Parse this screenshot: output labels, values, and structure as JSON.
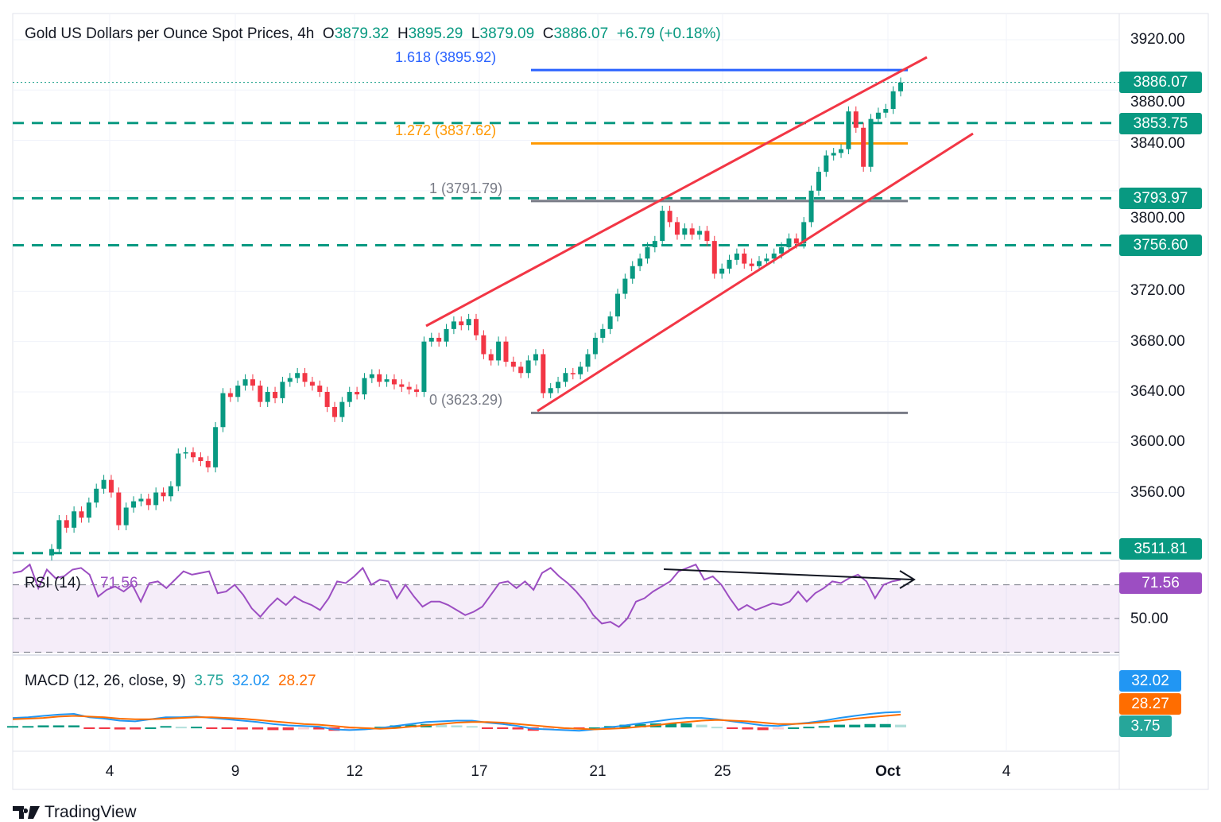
{
  "header": {
    "title": "Gold US Dollars per Ounce Spot Prices, 4h",
    "o_label": "O",
    "o": "3879.32",
    "h_label": "H",
    "h": "3895.29",
    "l_label": "L",
    "l": "3879.09",
    "c_label": "C",
    "c": "3886.07",
    "change": "+6.79 (+0.18%)"
  },
  "fib": [
    {
      "label": "1.618 (3895.92)",
      "price": 3895.92,
      "color": "#2962ff"
    },
    {
      "label": "1.272 (3837.62)",
      "price": 3837.62,
      "color": "#ff9800"
    },
    {
      "label": "1 (3791.79)",
      "price": 3791.79,
      "color": "#787b86"
    },
    {
      "label": "0 (3623.29)",
      "price": 3623.29,
      "color": "#787b86"
    }
  ],
  "levels": [
    {
      "label": "3853.75",
      "price": 3853.75
    },
    {
      "label": "3793.97",
      "price": 3793.97
    },
    {
      "label": "3756.60",
      "price": 3756.6
    },
    {
      "label": "3511.81",
      "price": 3511.81
    }
  ],
  "last_price": {
    "label": "3886.07",
    "price": 3886.07
  },
  "rsi": {
    "title": "RSI (14)",
    "value": "71.56",
    "level_label": "50.00",
    "color": "#9c4ec2"
  },
  "macd": {
    "title": "MACD (12, 26, close, 9)",
    "hist": "3.75",
    "macd": "32.02",
    "signal": "28.27",
    "hist_color": "#26a69a",
    "macd_color": "#2196f3",
    "signal_color": "#ff6d00"
  },
  "brand": "TradingView",
  "chart_data": {
    "type": "candlestick",
    "title": "Gold US Dollars per Ounce Spot Prices, 4h",
    "y_ticks": [
      "3920.00",
      "3880.00",
      "3840.00",
      "3800.00",
      "3720.00",
      "3680.00",
      "3640.00",
      "3600.00",
      "3560.00"
    ],
    "x_ticks": [
      "4",
      "9",
      "12",
      "17",
      "21",
      "25",
      "Oct",
      "4"
    ],
    "ylim": [
      3500,
      3930
    ],
    "closes": [
      3515,
      3538,
      3532,
      3545,
      3540,
      3552,
      3563,
      3570,
      3560,
      3534,
      3548,
      3553,
      3555,
      3550,
      3560,
      3557,
      3565,
      3591,
      3592,
      3588,
      3585,
      3580,
      3612,
      3639,
      3636,
      3645,
      3650,
      3645,
      3632,
      3640,
      3635,
      3648,
      3651,
      3655,
      3648,
      3645,
      3640,
      3628,
      3620,
      3632,
      3640,
      3638,
      3651,
      3654,
      3648,
      3650,
      3646,
      3644,
      3642,
      3640,
      3680,
      3683,
      3680,
      3690,
      3696,
      3693,
      3698,
      3685,
      3670,
      3665,
      3680,
      3664,
      3660,
      3655,
      3665,
      3670,
      3639,
      3643,
      3648,
      3655,
      3654,
      3660,
      3670,
      3683,
      3690,
      3700,
      3718,
      3730,
      3740,
      3746,
      3755,
      3760,
      3784,
      3775,
      3765,
      3770,
      3765,
      3768,
      3760,
      3734,
      3738,
      3745,
      3750,
      3742,
      3740,
      3744,
      3746,
      3750,
      3755,
      3762,
      3758,
      3775,
      3800,
      3815,
      3828,
      3830,
      3833,
      3863,
      3850,
      3819,
      3857,
      3862,
      3865,
      3879,
      3886
    ],
    "rsi_values": [
      77,
      78,
      82,
      68,
      79,
      74,
      75,
      79,
      80,
      76,
      63,
      67,
      69,
      66,
      70,
      60,
      71,
      72,
      68,
      73,
      78,
      76,
      77,
      78,
      65,
      66,
      70,
      64,
      56,
      51,
      57,
      62,
      58,
      63,
      60,
      58,
      55,
      62,
      72,
      71,
      75,
      80,
      70,
      73,
      72,
      62,
      70,
      63,
      57,
      60,
      60,
      58,
      55,
      52,
      54,
      57,
      64,
      71,
      72,
      68,
      72,
      67,
      77,
      80,
      75,
      71,
      66,
      60,
      52,
      47,
      48,
      45,
      50,
      60,
      62,
      66,
      69,
      72,
      78,
      80,
      82,
      73,
      75,
      70,
      62,
      55,
      58,
      55,
      57,
      59,
      58,
      60,
      66,
      60,
      65,
      68,
      72,
      71,
      74,
      76,
      72,
      62,
      70,
      72,
      73
    ],
    "macd_values": [
      14,
      15,
      17,
      19,
      20,
      15,
      13,
      10,
      9,
      12,
      15,
      15,
      16,
      14,
      12,
      10,
      8,
      5,
      3,
      2,
      1,
      -3,
      -4,
      -3,
      -1,
      2,
      5,
      8,
      9,
      10,
      10,
      7,
      5,
      2,
      -2,
      -3,
      -4,
      -5,
      -3,
      0,
      3,
      6,
      9,
      12,
      14,
      14,
      12,
      9,
      6,
      3,
      2,
      5,
      7,
      10,
      14,
      17,
      20,
      22,
      23
    ],
    "signal_values": [
      12,
      13,
      14,
      16,
      17,
      16,
      15,
      13,
      12,
      12,
      13,
      14,
      15,
      15,
      14,
      13,
      11,
      9,
      7,
      5,
      4,
      2,
      0,
      -1,
      -2,
      -1,
      1,
      3,
      5,
      7,
      8,
      8,
      7,
      5,
      3,
      1,
      -1,
      -2,
      -3,
      -2,
      -1,
      1,
      3,
      6,
      8,
      10,
      11,
      10,
      9,
      7,
      5,
      5,
      6,
      8,
      10,
      13,
      15,
      17,
      19
    ],
    "rsi_levels": [
      70,
      50,
      30
    ]
  }
}
